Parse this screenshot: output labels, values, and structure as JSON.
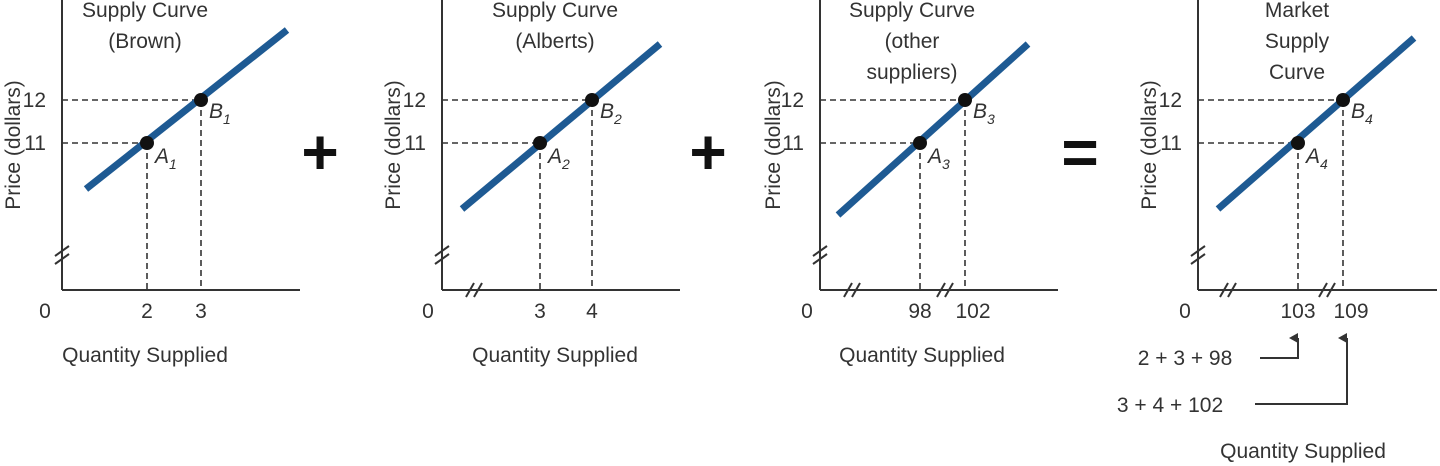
{
  "colors": {
    "line": "#1e5a93",
    "ink": "#333333",
    "point": "#111111"
  },
  "operators": [
    "+",
    "+",
    "="
  ],
  "chart_data": [
    {
      "type": "line",
      "title": [
        "Supply Curve",
        "(Brown)"
      ],
      "xlabel": "Quantity Supplied",
      "ylabel": "Price (dollars)",
      "origin_label": "0",
      "y_ticks": [
        "11",
        "12"
      ],
      "x_ticks": [
        "2",
        "3"
      ],
      "x_axis_break": false,
      "y_axis_break": true,
      "points": [
        {
          "name": "A",
          "sub": "1",
          "x": 2,
          "y": 11
        },
        {
          "name": "B",
          "sub": "1",
          "x": 3,
          "y": 12
        }
      ],
      "series": [
        {
          "x": [
            2,
            3
          ],
          "y": [
            11,
            12
          ]
        }
      ]
    },
    {
      "type": "line",
      "title": [
        "Supply Curve",
        "(Alberts)"
      ],
      "xlabel": "Quantity Supplied",
      "ylabel": "Price (dollars)",
      "origin_label": "0",
      "y_ticks": [
        "11",
        "12"
      ],
      "x_ticks": [
        "3",
        "4"
      ],
      "x_axis_break": true,
      "y_axis_break": true,
      "points": [
        {
          "name": "A",
          "sub": "2",
          "x": 3,
          "y": 11
        },
        {
          "name": "B",
          "sub": "2",
          "x": 4,
          "y": 12
        }
      ],
      "series": [
        {
          "x": [
            3,
            4
          ],
          "y": [
            11,
            12
          ]
        }
      ]
    },
    {
      "type": "line",
      "title": [
        "Supply Curve",
        "(other",
        "suppliers)"
      ],
      "xlabel": "Quantity Supplied",
      "ylabel": "Price (dollars)",
      "origin_label": "0",
      "y_ticks": [
        "11",
        "12"
      ],
      "x_ticks": [
        "98",
        "102"
      ],
      "x_axis_break": true,
      "y_axis_break": true,
      "points": [
        {
          "name": "A",
          "sub": "3",
          "x": 98,
          "y": 11
        },
        {
          "name": "B",
          "sub": "3",
          "x": 102,
          "y": 12
        }
      ],
      "series": [
        {
          "x": [
            98,
            102
          ],
          "y": [
            11,
            12
          ]
        }
      ]
    },
    {
      "type": "line",
      "title": [
        "Market",
        "Supply",
        "Curve"
      ],
      "xlabel": "Quantity Supplied",
      "ylabel": "Price (dollars)",
      "origin_label": "0",
      "y_ticks": [
        "11",
        "12"
      ],
      "x_ticks": [
        "103",
        "109"
      ],
      "x_axis_break": true,
      "y_axis_break": true,
      "points": [
        {
          "name": "A",
          "sub": "4",
          "x": 103,
          "y": 11
        },
        {
          "name": "B",
          "sub": "4",
          "x": 109,
          "y": 12
        }
      ],
      "series": [
        {
          "x": [
            103,
            109
          ],
          "y": [
            11,
            12
          ]
        }
      ],
      "annotations": [
        "2 + 3 + 98",
        "3 + 4 + 102"
      ]
    }
  ]
}
